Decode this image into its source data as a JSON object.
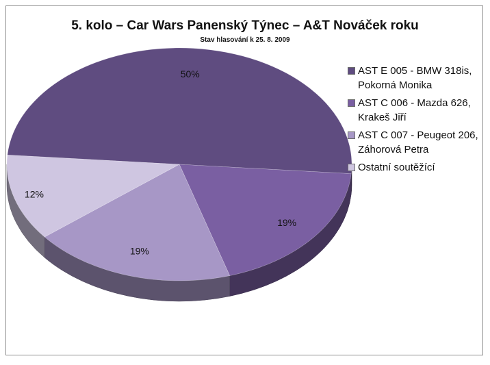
{
  "chart_data": {
    "type": "pie",
    "title": "5. kolo – Car Wars Panenský Týnec – A&T Nováček roku",
    "subtitle": "Stav hlasování k 25. 8. 2009",
    "legend_position": "right",
    "three_d": true,
    "slices": [
      {
        "label": "AST E 005 - BMW 318is, Pokorná Monika",
        "value": 50,
        "data_label": "50%",
        "color": "#5f4c80"
      },
      {
        "label": "AST C 006 - Mazda 626, Krakeš Jiří",
        "value": 19,
        "data_label": "19%",
        "color": "#7a5fa2"
      },
      {
        "label": "AST C 007 - Peugeot 206, Záhorová Petra",
        "value": 19,
        "data_label": "19%",
        "color": "#a797c6"
      },
      {
        "label": "Ostatní soutěžící",
        "value": 12,
        "data_label": "12%",
        "color": "#cfc6e1"
      }
    ]
  }
}
